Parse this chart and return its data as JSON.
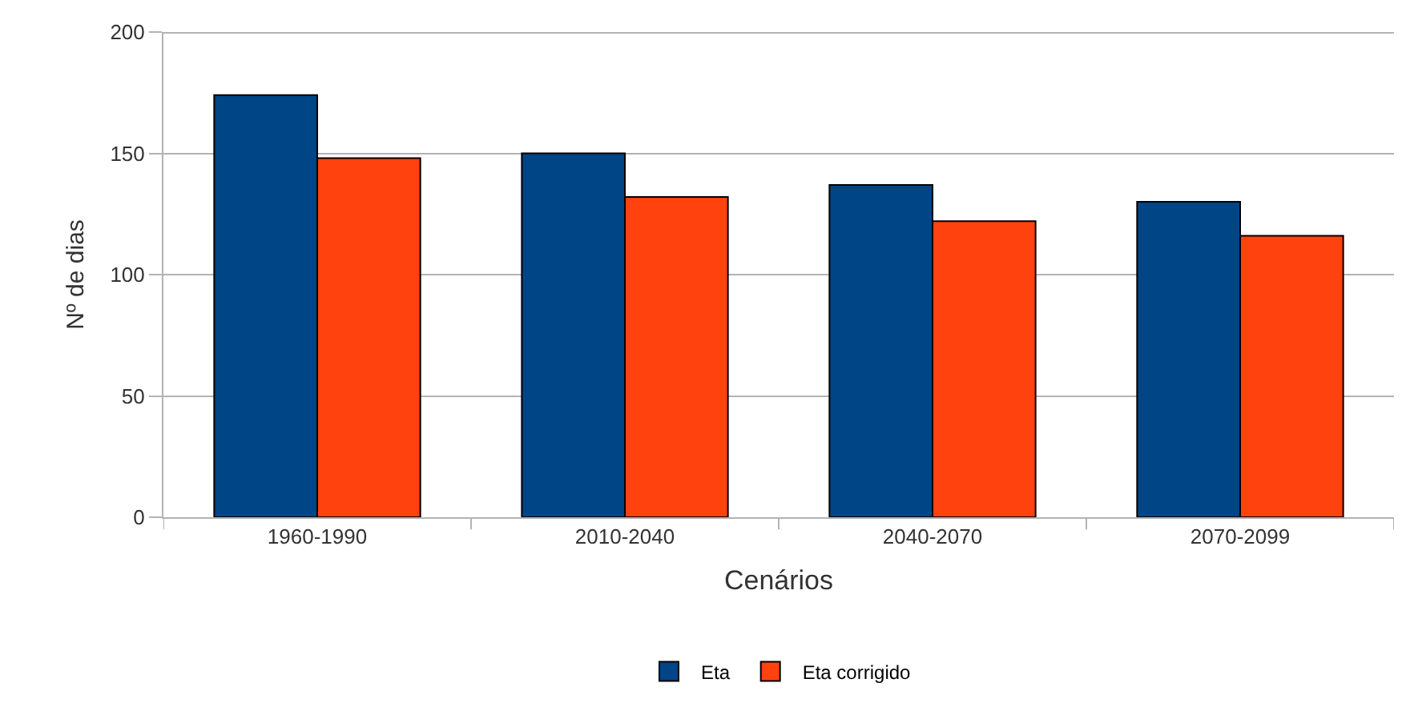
{
  "chart_data": {
    "type": "bar",
    "xlabel": "Cenários",
    "ylabel": "Nº de dias",
    "categories": [
      "1960-1990",
      "2010-2040",
      "2040-2070",
      "2070-2099"
    ],
    "series": [
      {
        "name": "Eta",
        "color": "#004586",
        "values": [
          174,
          150,
          137,
          130
        ]
      },
      {
        "name": "Eta corrigido",
        "color": "#ff420e",
        "values": [
          148,
          132,
          122,
          116
        ]
      }
    ],
    "ylim": [
      0,
      200
    ],
    "yticks": [
      0,
      50,
      100,
      150,
      200
    ],
    "grid": "y",
    "legend": "bottom"
  }
}
